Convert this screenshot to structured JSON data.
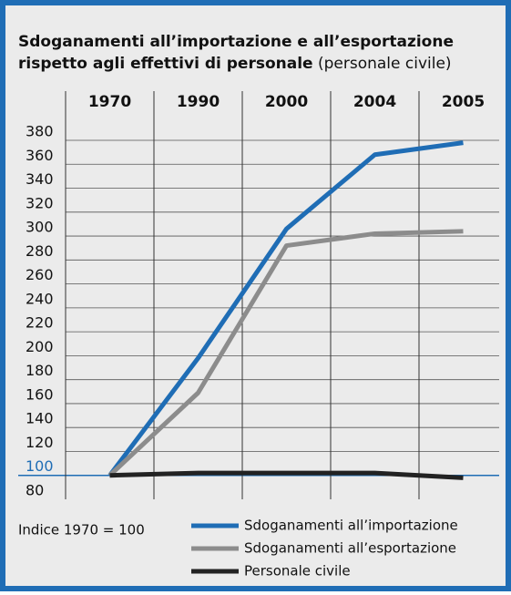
{
  "chart_data": {
    "type": "line",
    "title": [
      "Sdoganamenti all’importazione e all’esportazione",
      "rispetto agli effettivi di personale"
    ],
    "subtitle": "(personale civile)",
    "categories": [
      "1970",
      "1990",
      "2000",
      "2004",
      "2005"
    ],
    "series": [
      {
        "name": "Sdoganamenti all’importazione",
        "color": "#1f6db5",
        "values": [
          100,
          198,
          306,
          368,
          378
        ]
      },
      {
        "name": "Sdoganamenti all’esportazione",
        "color": "#8c8c8c",
        "values": [
          100,
          169,
          292,
          302,
          304
        ]
      },
      {
        "name": "Personale civile",
        "color": "#222222",
        "values": [
          100,
          102,
          102,
          102,
          98
        ]
      }
    ],
    "ylim": [
      80,
      380
    ],
    "yticks": [
      80,
      100,
      120,
      140,
      160,
      180,
      200,
      220,
      240,
      260,
      280,
      300,
      320,
      340,
      360,
      380
    ],
    "highlight_tick": 100,
    "highlight_color": "#1f6db5",
    "grid": true,
    "annotation": "Indice 1970 = 100"
  }
}
